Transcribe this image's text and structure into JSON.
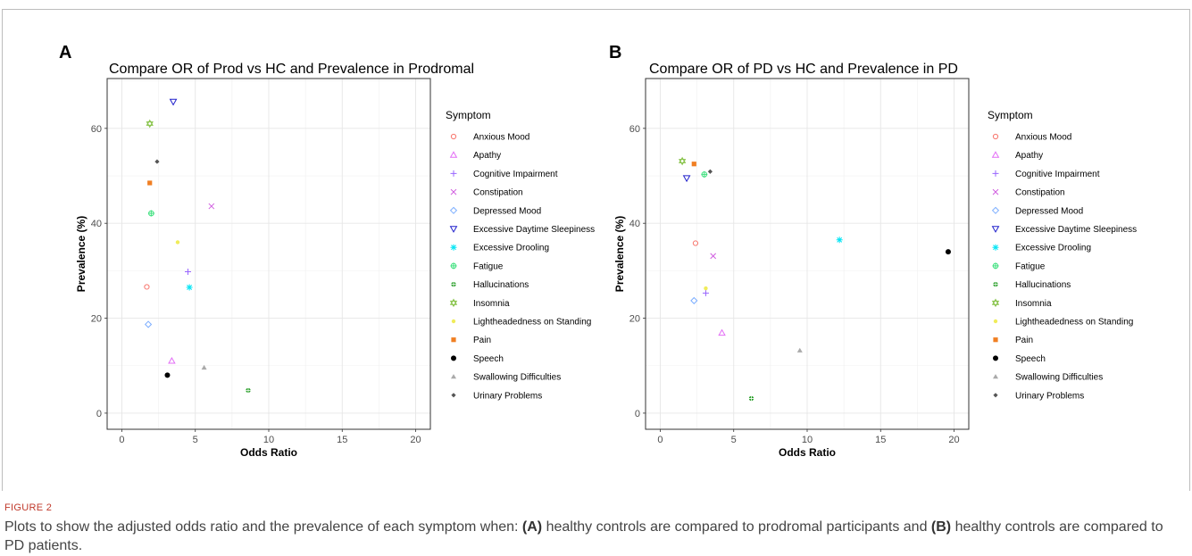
{
  "figure": {
    "label": "FIGURE 2",
    "caption_parts": [
      {
        "text": "Plots to show the adjusted odds ratio and the prevalence of each symptom when: ",
        "bold": false
      },
      {
        "text": "(A)",
        "bold": true
      },
      {
        "text": " healthy controls are compared to prodromal participants and ",
        "bold": false
      },
      {
        "text": "(B)",
        "bold": true
      },
      {
        "text": " healthy controls are compared to PD patients.",
        "bold": false
      }
    ]
  },
  "legend_title": "Symptom",
  "symptoms": [
    {
      "name": "Anxious Mood",
      "color": "#F8766D",
      "shape": "circle"
    },
    {
      "name": "Apathy",
      "color": "#E36EF6",
      "shape": "triangle"
    },
    {
      "name": "Cognitive Impairment",
      "color": "#9966FF",
      "shape": "plus"
    },
    {
      "name": "Constipation",
      "color": "#D15FE0",
      "shape": "cross"
    },
    {
      "name": "Depressed Mood",
      "color": "#7CAEFF",
      "shape": "diamond"
    },
    {
      "name": "Excessive Daytime Sleepiness",
      "color": "#2020CC",
      "shape": "triangle-down"
    },
    {
      "name": "Excessive Drooling",
      "color": "#00E5F5",
      "shape": "asterisk"
    },
    {
      "name": "Fatigue",
      "color": "#3EE07E",
      "shape": "circle-plus"
    },
    {
      "name": "Hallucinations",
      "color": "#2CA02C",
      "shape": "circle-plus-small"
    },
    {
      "name": "Insomnia",
      "color": "#88C34A",
      "shape": "star-david"
    },
    {
      "name": "Lightheadedness on Standing",
      "color": "#F0EC5A",
      "shape": "dot-small"
    },
    {
      "name": "Pain",
      "color": "#F07F23",
      "shape": "square"
    },
    {
      "name": "Speech",
      "color": "#000000",
      "shape": "dot"
    },
    {
      "name": "Swallowing Difficulties",
      "color": "#AAAAAA",
      "shape": "triangle-filled"
    },
    {
      "name": "Urinary Problems",
      "color": "#555555",
      "shape": "diamond-filled"
    }
  ],
  "chart_data": [
    {
      "type": "scatter",
      "panel": "A",
      "title": "Compare OR of Prod vs HC and Prevalence in Prodromal",
      "xlabel": "Odds Ratio",
      "ylabel": "Prevalence (%)",
      "xlim": [
        -1,
        21
      ],
      "ylim": [
        -3.4,
        70.5
      ],
      "xticks": [
        0,
        5,
        10,
        15,
        20
      ],
      "yticks": [
        0,
        20,
        40,
        60
      ],
      "grid": true,
      "legend": "right",
      "points": [
        {
          "symptom": "Anxious Mood",
          "x": 1.7,
          "y": 26.6
        },
        {
          "symptom": "Apathy",
          "x": 3.4,
          "y": 11.0
        },
        {
          "symptom": "Cognitive Impairment",
          "x": 4.5,
          "y": 29.8
        },
        {
          "symptom": "Constipation",
          "x": 6.1,
          "y": 43.6
        },
        {
          "symptom": "Depressed Mood",
          "x": 1.8,
          "y": 18.7
        },
        {
          "symptom": "Excessive Daytime Sleepiness",
          "x": 3.5,
          "y": 65.6
        },
        {
          "symptom": "Excessive Drooling",
          "x": 4.6,
          "y": 26.5
        },
        {
          "symptom": "Fatigue",
          "x": 2.0,
          "y": 42.1
        },
        {
          "symptom": "Hallucinations",
          "x": 8.6,
          "y": 4.8
        },
        {
          "symptom": "Insomnia",
          "x": 1.9,
          "y": 61.0
        },
        {
          "symptom": "Lightheadedness on Standing",
          "x": 3.8,
          "y": 36.0
        },
        {
          "symptom": "Pain",
          "x": 1.9,
          "y": 48.5
        },
        {
          "symptom": "Speech",
          "x": 3.1,
          "y": 8.0
        },
        {
          "symptom": "Swallowing Difficulties",
          "x": 5.6,
          "y": 9.6
        },
        {
          "symptom": "Urinary Problems",
          "x": 2.4,
          "y": 53.0
        }
      ]
    },
    {
      "type": "scatter",
      "panel": "B",
      "title": "Compare OR of PD vs HC and Prevalence in PD",
      "xlabel": "Odds Ratio",
      "ylabel": "Prevalence (%)",
      "xlim": [
        -1,
        21
      ],
      "ylim": [
        -3.4,
        70.5
      ],
      "xticks": [
        0,
        5,
        10,
        15,
        20
      ],
      "yticks": [
        0,
        20,
        40,
        60
      ],
      "grid": true,
      "legend": "right",
      "points": [
        {
          "symptom": "Anxious Mood",
          "x": 2.4,
          "y": 35.8
        },
        {
          "symptom": "Apathy",
          "x": 4.2,
          "y": 16.9
        },
        {
          "symptom": "Cognitive Impairment",
          "x": 3.1,
          "y": 25.3
        },
        {
          "symptom": "Constipation",
          "x": 3.6,
          "y": 33.1
        },
        {
          "symptom": "Depressed Mood",
          "x": 2.3,
          "y": 23.7
        },
        {
          "symptom": "Excessive Daytime Sleepiness",
          "x": 1.8,
          "y": 49.5
        },
        {
          "symptom": "Excessive Drooling",
          "x": 12.2,
          "y": 36.5
        },
        {
          "symptom": "Fatigue",
          "x": 3.0,
          "y": 50.3
        },
        {
          "symptom": "Hallucinations",
          "x": 6.2,
          "y": 3.1
        },
        {
          "symptom": "Insomnia",
          "x": 1.5,
          "y": 53.1
        },
        {
          "symptom": "Lightheadedness on Standing",
          "x": 3.1,
          "y": 26.3
        },
        {
          "symptom": "Pain",
          "x": 2.3,
          "y": 52.5
        },
        {
          "symptom": "Speech",
          "x": 19.6,
          "y": 34.0
        },
        {
          "symptom": "Swallowing Difficulties",
          "x": 9.5,
          "y": 13.2
        },
        {
          "symptom": "Urinary Problems",
          "x": 3.4,
          "y": 50.9
        }
      ]
    }
  ]
}
